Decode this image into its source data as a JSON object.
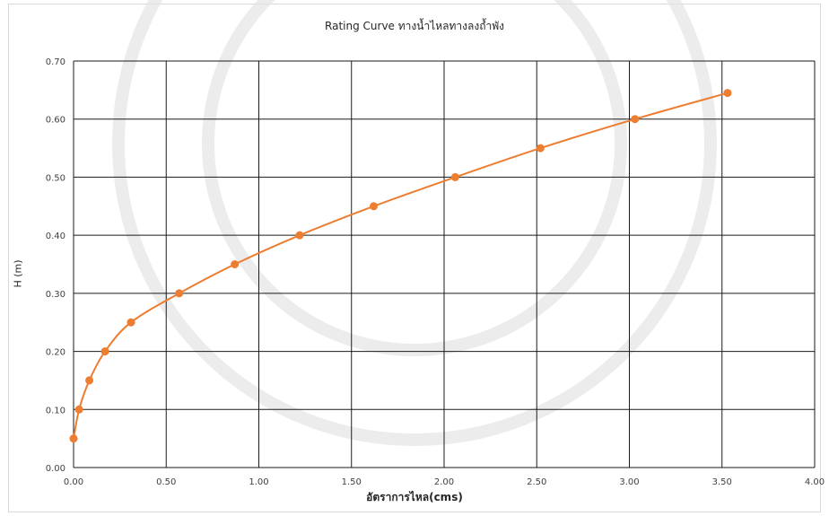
{
  "chart_data": {
    "type": "line",
    "title": "Rating Curve ทางน้ำไหลทางลงถ้ำพัง",
    "xlabel": "อัตราการไหล(cms)",
    "ylabel": "H (m)",
    "xlim": [
      0,
      4
    ],
    "ylim": [
      0,
      0.7
    ],
    "x_ticks": [
      "0.00",
      "0.50",
      "1.00",
      "1.50",
      "2.00",
      "2.50",
      "3.00",
      "3.50",
      "4.00"
    ],
    "y_ticks": [
      "0.00",
      "0.10",
      "0.20",
      "0.30",
      "0.40",
      "0.50",
      "0.60",
      "0.70"
    ],
    "grid": true,
    "series": [
      {
        "color": "#ed7d31",
        "x": [
          0.0,
          0.03,
          0.085,
          0.17,
          0.31,
          0.57,
          0.87,
          1.22,
          1.62,
          2.06,
          2.52,
          3.03,
          3.53
        ],
        "y": [
          0.05,
          0.1,
          0.15,
          0.2,
          0.25,
          0.3,
          0.35,
          0.4,
          0.45,
          0.5,
          0.55,
          0.6,
          0.645
        ]
      }
    ],
    "watermark_color": "#d9d9d9"
  }
}
